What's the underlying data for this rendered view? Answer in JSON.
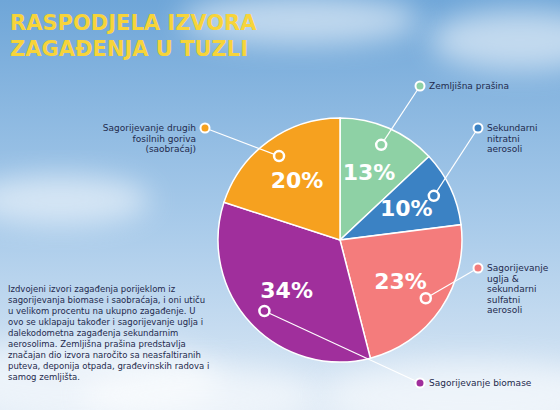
{
  "chart_data": {
    "type": "pie",
    "title": "RASPODJELA IZVORA ZAGAĐENJA U TUZLI",
    "categories": [
      "Zemljišna prašina",
      "Sekundarni nitratni aerosoli",
      "Sagorijevanje uglja & sekundarni sulfatni aerosoli",
      "Sagorijevanje biomase",
      "Sagorijevanje drugih fosilnih goriva (saobraćaj)"
    ],
    "values": [
      13,
      10,
      23,
      34,
      20
    ],
    "value_labels": [
      "13%",
      "10%",
      "23%",
      "34%",
      "20%"
    ],
    "colors": [
      "#8ed1a5",
      "#3b82c4",
      "#f47c7c",
      "#a02f9c",
      "#f6a11f"
    ],
    "data_labels": true,
    "annotations": [
      "Izdvojeni izvori zagađenja porijeklom iz sagorijevanja biomase i saobraćaja, i oni utiču u velikom procentu na ukupno zagađenje. U ovo se uklapaju također i sagorijevanje uglja i dalekodometna zagađenja sekundarnim aerosolima. Zemljišna prašina predstavlja značajan dio izvora naročito sa neasfaltiranih puteva, deponija otpada, građevinskih radova i samog zemljišta."
    ]
  }
}
